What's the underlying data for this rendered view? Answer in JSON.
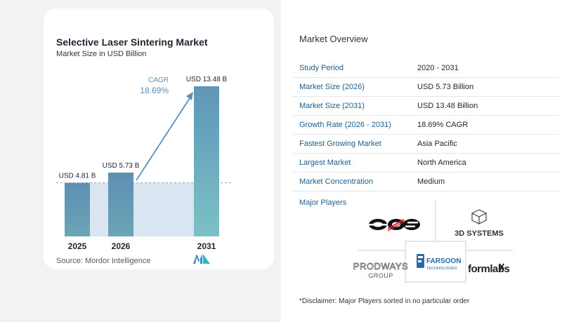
{
  "chart_data": {
    "type": "bar",
    "title": "Selective Laser Sintering Market",
    "subtitle": "Market Size in USD Billion",
    "categories": [
      "2025",
      "2026",
      "2031"
    ],
    "values": [
      4.81,
      5.73,
      13.48
    ],
    "data_labels": [
      "USD 4.81 B",
      "USD 5.73 B",
      "USD 13.48 B"
    ],
    "cagr_label": "CAGR",
    "cagr_value": "18.69%",
    "ylim": [
      0,
      14
    ],
    "colors": {
      "bar_top": "#5e8fb3",
      "bar_bottom": "#6aa5b6",
      "last_top": "#5e96b8",
      "last_bottom": "#7cc1c6",
      "band": "#d9e6f1",
      "arrow": "#5b8fb8"
    }
  },
  "source": "Source:  Mordor Intelligence",
  "overview": {
    "title": "Market Overview",
    "rows": [
      {
        "key": "Study Period",
        "value": "2020 - 2031"
      },
      {
        "key": "Market Size (2026)",
        "value": "USD 5.73 Billion"
      },
      {
        "key": "Market Size (2031)",
        "value": "USD 13.48 Billion"
      },
      {
        "key": "Growth Rate (2026 - 2031)",
        "value": "18.69% CAGR"
      },
      {
        "key": "Fastest Growing Market",
        "value": "Asia Pacific"
      },
      {
        "key": "Largest Market",
        "value": "North America"
      },
      {
        "key": "Market Concentration",
        "value": "Medium"
      }
    ]
  },
  "players": {
    "title": "Major Players",
    "names": [
      "EOS",
      "3D SYSTEMS",
      "PRODWAYS GROUP",
      "FARSOON TECHNOLOGIES",
      "formlabs"
    ]
  },
  "disclaimer": "*Disclaimer: Major Players sorted in no particular order"
}
